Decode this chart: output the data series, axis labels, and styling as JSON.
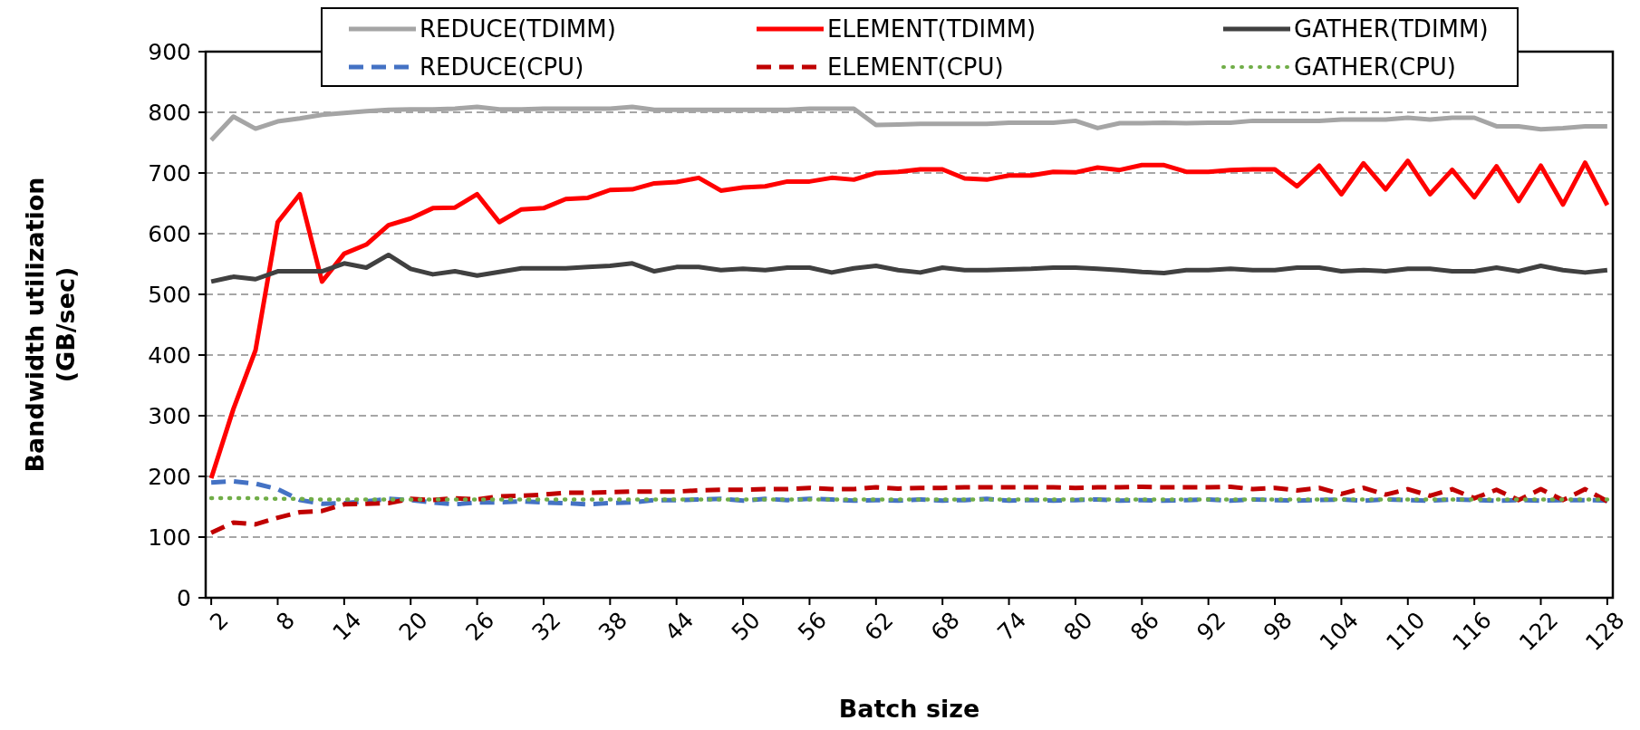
{
  "chart_data": {
    "type": "line",
    "xlabel": "Batch size",
    "ylabel": "Bandwidth utilization\n(GB/sec)",
    "x": [
      2,
      4,
      6,
      8,
      10,
      12,
      14,
      16,
      18,
      20,
      22,
      24,
      26,
      28,
      30,
      32,
      34,
      36,
      38,
      40,
      42,
      44,
      46,
      48,
      50,
      52,
      54,
      56,
      58,
      60,
      62,
      64,
      66,
      68,
      70,
      72,
      74,
      76,
      78,
      80,
      82,
      84,
      86,
      88,
      90,
      92,
      94,
      96,
      98,
      100,
      102,
      104,
      106,
      108,
      110,
      112,
      114,
      116,
      118,
      120,
      122,
      124,
      126,
      128
    ],
    "xlim": [
      1.5,
      128.5
    ],
    "xticks": [
      2,
      8,
      14,
      20,
      26,
      32,
      38,
      44,
      50,
      56,
      62,
      68,
      74,
      80,
      86,
      92,
      98,
      104,
      110,
      116,
      122,
      128
    ],
    "ylim": [
      0,
      900
    ],
    "yticks": [
      0,
      100,
      200,
      300,
      400,
      500,
      600,
      700,
      800,
      900
    ],
    "grid": "y",
    "legend": "top",
    "marker": "none",
    "series": [
      {
        "name": "REDUCE(TDIMM)",
        "color": "#a5a5a5",
        "line_style": "solid",
        "values": [
          754,
          793,
          773,
          785,
          790,
          796,
          799,
          802,
          804,
          805,
          805,
          806,
          809,
          805,
          805,
          806,
          806,
          806,
          806,
          809,
          804,
          804,
          804,
          804,
          804,
          804,
          804,
          806,
          806,
          806,
          779,
          780,
          781,
          781,
          781,
          781,
          783,
          783,
          783,
          786,
          774,
          782,
          782,
          783,
          782,
          783,
          783,
          786,
          786,
          786,
          786,
          788,
          788,
          788,
          791,
          788,
          791,
          791,
          777,
          777,
          772,
          774,
          777,
          777
        ]
      },
      {
        "name": "ELEMENT(TDIMM)",
        "color": "#ff0000",
        "line_style": "solid",
        "values": [
          197,
          311,
          408,
          619,
          665,
          521,
          567,
          582,
          614,
          625,
          642,
          643,
          665,
          619,
          640,
          642,
          657,
          659,
          672,
          673,
          683,
          685,
          692,
          671,
          676,
          678,
          686,
          686,
          692,
          689,
          700,
          702,
          706,
          706,
          691,
          689,
          696,
          696,
          702,
          701,
          709,
          705,
          713,
          713,
          702,
          702,
          705,
          706,
          706,
          678,
          712,
          665,
          716,
          673,
          720,
          665,
          705,
          660,
          711,
          654,
          712,
          648,
          717,
          647
        ]
      },
      {
        "name": "GATHER(TDIMM)",
        "color": "#404040",
        "line_style": "solid",
        "values": [
          521,
          529,
          525,
          538,
          538,
          538,
          551,
          544,
          565,
          542,
          533,
          538,
          531,
          537,
          543,
          543,
          543,
          545,
          547,
          551,
          538,
          545,
          545,
          540,
          542,
          540,
          544,
          544,
          536,
          543,
          547,
          540,
          536,
          544,
          540,
          540,
          541,
          542,
          544,
          544,
          542,
          540,
          537,
          535,
          540,
          540,
          542,
          540,
          540,
          544,
          544,
          538,
          540,
          538,
          542,
          542,
          538,
          538,
          544,
          538,
          547,
          540,
          536,
          540
        ]
      },
      {
        "name": "REDUCE(CPU)",
        "color": "#4472c4",
        "line_style": "dashed",
        "values": [
          190,
          192,
          188,
          179,
          161,
          155,
          156,
          159,
          163,
          161,
          157,
          154,
          157,
          157,
          159,
          157,
          156,
          154,
          156,
          157,
          161,
          161,
          162,
          163,
          160,
          163,
          161,
          163,
          162,
          160,
          161,
          160,
          162,
          160,
          161,
          163,
          160,
          161,
          160,
          161,
          162,
          160,
          161,
          160,
          161,
          162,
          160,
          162,
          161,
          160,
          161,
          162,
          160,
          162,
          161,
          160,
          162,
          161,
          160,
          161,
          160,
          161,
          161,
          160
        ]
      },
      {
        "name": "ELEMENT(CPU)",
        "color": "#c00000",
        "line_style": "dashed",
        "values": [
          107,
          124,
          121,
          132,
          141,
          143,
          154,
          155,
          156,
          163,
          161,
          164,
          162,
          167,
          168,
          170,
          173,
          173,
          174,
          175,
          175,
          175,
          177,
          178,
          178,
          179,
          179,
          181,
          179,
          179,
          182,
          180,
          181,
          181,
          182,
          182,
          182,
          182,
          182,
          181,
          182,
          182,
          183,
          182,
          182,
          182,
          183,
          179,
          181,
          177,
          181,
          171,
          181,
          170,
          179,
          168,
          179,
          164,
          178,
          161,
          179,
          161,
          179,
          159
        ]
      },
      {
        "name": "GATHER(CPU)",
        "color": "#70ad47",
        "line_style": "dotted",
        "values": [
          164,
          164,
          164,
          163,
          163,
          162,
          162,
          162,
          162,
          162,
          162,
          162,
          162,
          162,
          162,
          162,
          162,
          162,
          162,
          162,
          162,
          162,
          162,
          162,
          162,
          162,
          162,
          162,
          162,
          162,
          162,
          162,
          162,
          162,
          162,
          162,
          162,
          162,
          162,
          162,
          162,
          162,
          162,
          162,
          162,
          162,
          162,
          162,
          162,
          162,
          162,
          162,
          162,
          162,
          162,
          162,
          162,
          162,
          162,
          162,
          162,
          162,
          162,
          162
        ]
      }
    ]
  }
}
